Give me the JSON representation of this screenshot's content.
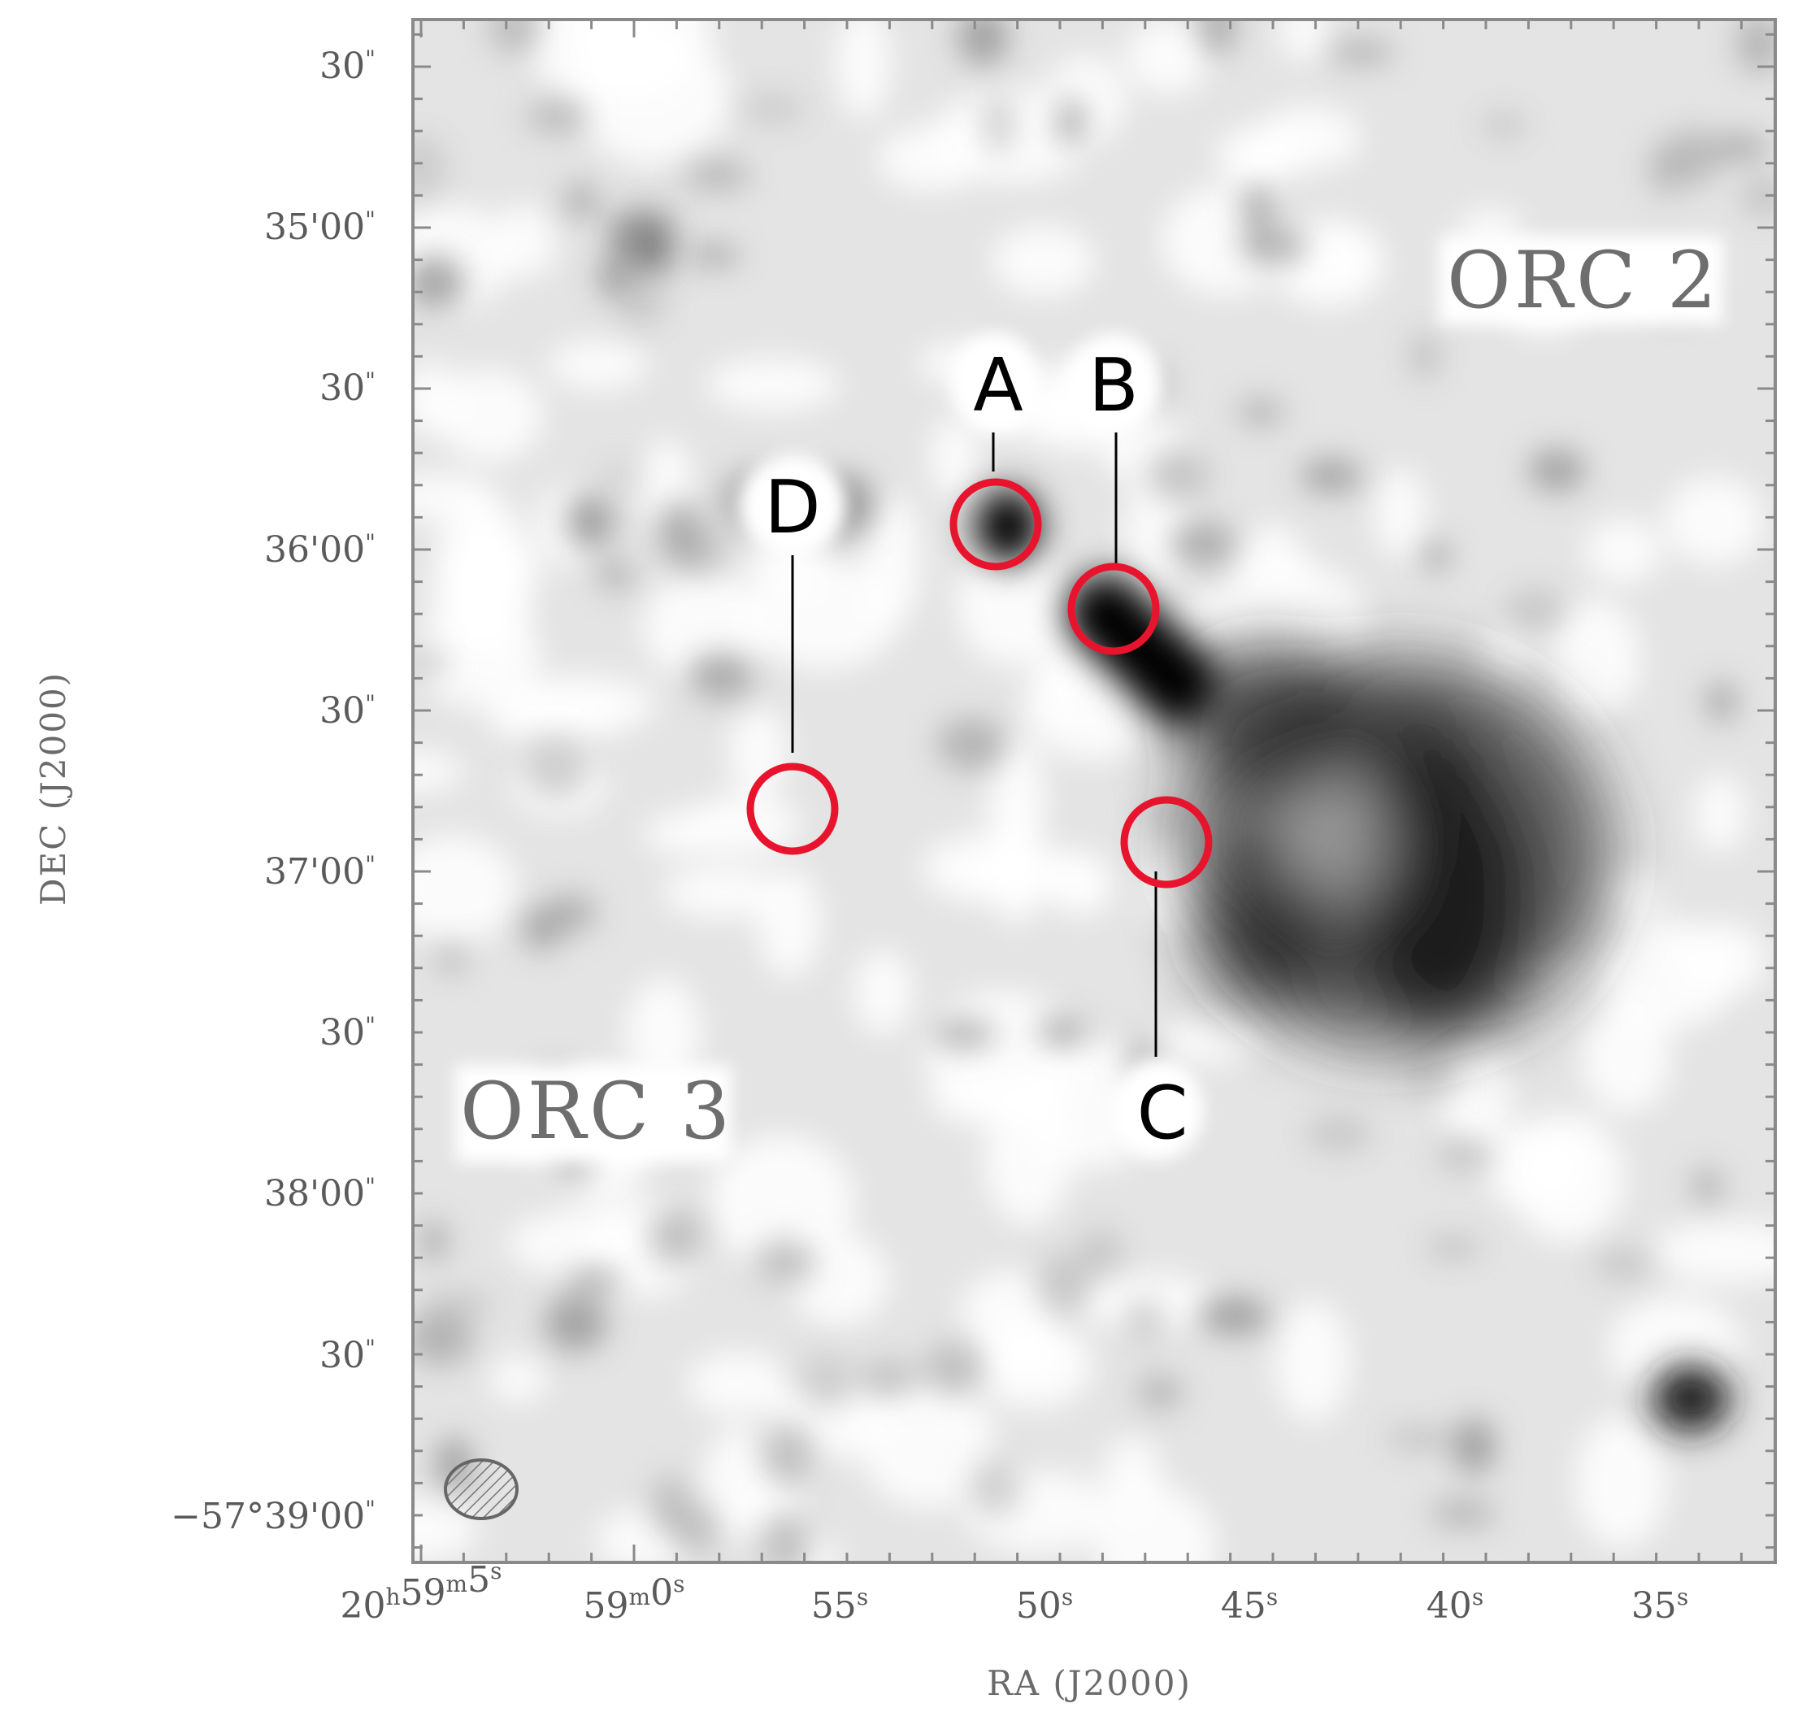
{
  "image": {
    "description": "Greyscale radio continuum map with red circle markers and labels",
    "axes": {
      "x_title": "RA (J2000)",
      "y_title": "DEC (J2000)",
      "x_ticks": [
        {
          "label": "20h59m5s",
          "parts": [
            "20",
            "h",
            "59",
            "m",
            "5",
            "s"
          ]
        },
        {
          "label": "59m0s",
          "parts": [
            "59",
            "m",
            "0",
            "s"
          ]
        },
        {
          "label": "55s",
          "parts": [
            "55",
            "s"
          ]
        },
        {
          "label": "50s",
          "parts": [
            "50",
            "s"
          ]
        },
        {
          "label": "45s",
          "parts": [
            "45",
            "s"
          ]
        },
        {
          "label": "40s",
          "parts": [
            "40",
            "s"
          ]
        },
        {
          "label": "35s",
          "parts": [
            "35",
            "s"
          ]
        }
      ],
      "y_ticks": [
        {
          "label": "30\"",
          "main": "30",
          "unit": "\""
        },
        {
          "label": "35'00\"",
          "main": "35'00",
          "unit": "\""
        },
        {
          "label": "30\"",
          "main": "30",
          "unit": "\""
        },
        {
          "label": "36'00\"",
          "main": "36'00",
          "unit": "\""
        },
        {
          "label": "30\"",
          "main": "30",
          "unit": "\""
        },
        {
          "label": "37'00\"",
          "main": "37'00",
          "unit": "\""
        },
        {
          "label": "30\"",
          "main": "30",
          "unit": "\""
        },
        {
          "label": "38'00\"",
          "main": "38'00",
          "unit": "\""
        },
        {
          "label": "30\"",
          "main": "30",
          "unit": "\""
        },
        {
          "label": "-57°39'00\"",
          "main": "−57°39'00",
          "unit": "\""
        }
      ]
    },
    "field_labels": {
      "orc2": "ORC 2",
      "orc3": "ORC 3"
    },
    "markers": [
      {
        "id": "A",
        "label": "A",
        "color": "#e8142d"
      },
      {
        "id": "B",
        "label": "B",
        "color": "#e8142d"
      },
      {
        "id": "C",
        "label": "C",
        "color": "#e8142d"
      },
      {
        "id": "D",
        "label": "D",
        "color": "#e8142d"
      }
    ],
    "colors": {
      "marker": "#e8142d",
      "frame": "#8a8a8a",
      "text": "#5a5a5a"
    },
    "beam_icon": "hatched-ellipse-icon"
  }
}
